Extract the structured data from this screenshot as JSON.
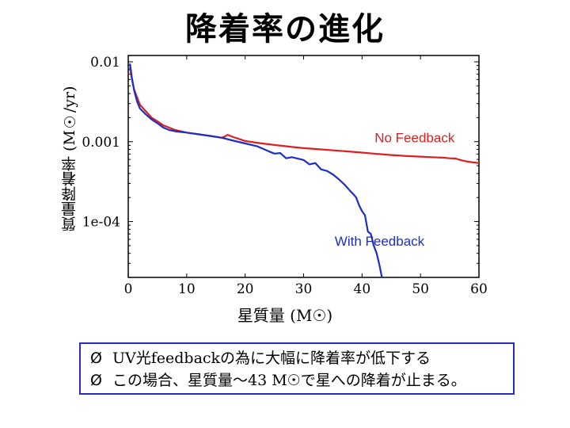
{
  "page": {
    "title": "降着率の進化"
  },
  "chart_data": {
    "type": "line",
    "xlabel": "星質量 (M☉)",
    "ylabel": "質量降着率 (M☉/yr)",
    "xlim": [
      0,
      60
    ],
    "ylim": [
      2e-05,
      0.012
    ],
    "yscale": "log",
    "xticks": [
      0,
      10,
      20,
      30,
      40,
      50,
      60
    ],
    "yticks": [
      {
        "value": 0.01,
        "label": "0.01"
      },
      {
        "value": 0.001,
        "label": "0.001"
      },
      {
        "value": 0.0001,
        "label": "1e-04"
      }
    ],
    "series": [
      {
        "name": "No Feedback",
        "color": "#dd1f1f",
        "x": [
          0.3,
          0.6,
          1,
          1.5,
          2,
          3,
          4,
          5,
          6,
          7,
          8,
          9,
          10,
          12,
          14,
          16,
          16.5,
          17,
          18,
          19,
          20,
          22,
          25,
          28,
          30,
          33,
          36,
          39,
          42,
          45,
          48,
          50,
          52,
          54,
          55,
          56,
          57,
          58,
          59,
          60
        ],
        "y": [
          0.0085,
          0.0062,
          0.0045,
          0.0036,
          0.0029,
          0.0024,
          0.002,
          0.0018,
          0.0016,
          0.0015,
          0.0014,
          0.00135,
          0.0013,
          0.00124,
          0.00118,
          0.00112,
          0.00116,
          0.00122,
          0.00114,
          0.00108,
          0.00102,
          0.00097,
          0.00091,
          0.00086,
          0.00083,
          0.0008,
          0.00077,
          0.00074,
          0.00071,
          0.00068,
          0.00066,
          0.00065,
          0.00064,
          0.00063,
          0.00062,
          0.000615,
          0.000585,
          0.000565,
          0.00055,
          0.00054
        ]
      },
      {
        "name": "With Feedback",
        "color": "#1c2ec4",
        "x": [
          0.3,
          0.6,
          1,
          1.5,
          2,
          3,
          4,
          5,
          6,
          7,
          8,
          10,
          12,
          14,
          16,
          18,
          20,
          22,
          24,
          25,
          26,
          27,
          28,
          30,
          31,
          32,
          33,
          34,
          35,
          36,
          37,
          38,
          38.5,
          39,
          39.5,
          40,
          40.5,
          41,
          41.5,
          42,
          42.5,
          43,
          43.4
        ],
        "y": [
          0.0095,
          0.0065,
          0.0044,
          0.0032,
          0.0026,
          0.0022,
          0.0019,
          0.0017,
          0.0015,
          0.0014,
          0.00135,
          0.0013,
          0.00124,
          0.00118,
          0.00112,
          0.00103,
          0.00095,
          0.00088,
          0.00076,
          0.00071,
          0.00072,
          0.00062,
          0.00064,
          0.00059,
          0.00052,
          0.00054,
          0.00045,
          0.00043,
          0.00039,
          0.00034,
          0.00029,
          0.00024,
          0.00022,
          0.0002,
          0.00016,
          0.000135,
          0.00012,
          7.5e-05,
          7e-05,
          5e-05,
          4e-05,
          2.8e-05,
          2e-05
        ]
      }
    ],
    "annotations": [
      {
        "text": "No Feedback",
        "x": 49,
        "y": 0.00098,
        "color": "#dd1f1f"
      },
      {
        "text": "With Feedback",
        "x": 43,
        "y": 5e-05,
        "color": "#1c2ec4"
      }
    ]
  },
  "notes": {
    "bullet": "Ø",
    "lines": [
      "UV光feedbackの為に大幅に降着率が低下する",
      "この場合、星質量〜43 M☉で星への降着が止まる。"
    ]
  }
}
